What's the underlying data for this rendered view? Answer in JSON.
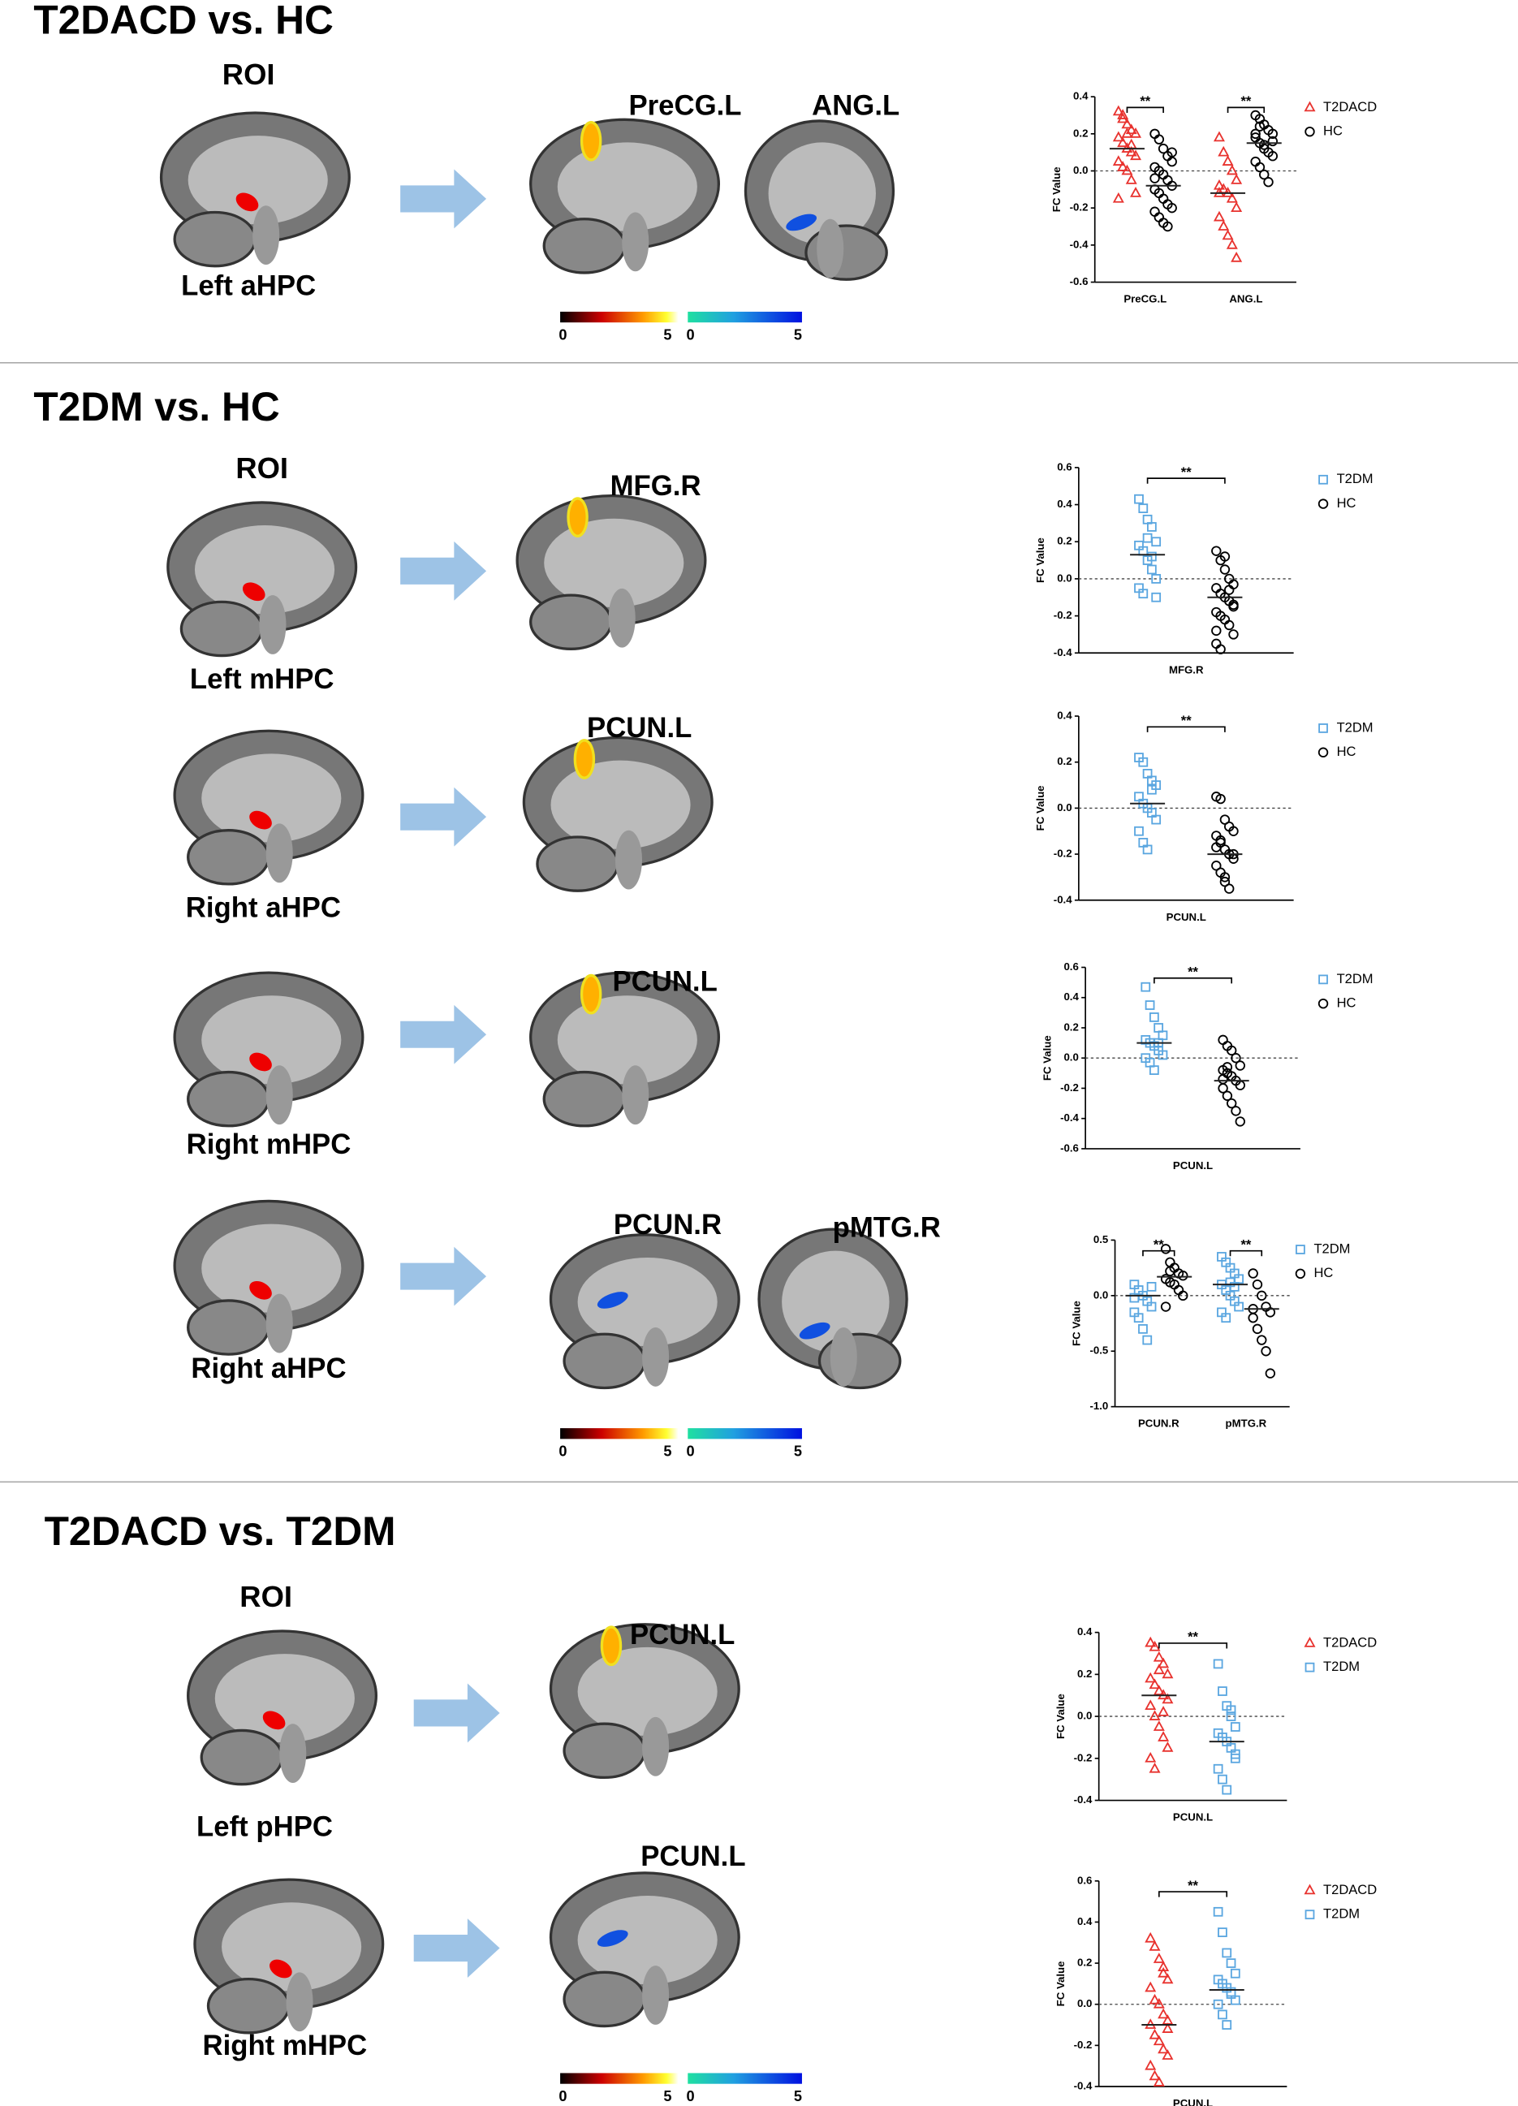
{
  "sections": [
    {
      "title": "T2DACD vs. HC",
      "rows": [
        {
          "roi_heading": "ROI",
          "roi": "Left aHPC",
          "regions": [
            "PreCG.L",
            "ANG.L"
          ]
        }
      ],
      "colorbar_labels": [
        0,
        5,
        0,
        5
      ]
    },
    {
      "title": "T2DM vs. HC",
      "rows": [
        {
          "roi_heading": "ROI",
          "roi": "Left mHPC",
          "regions": [
            "MFG.R"
          ]
        },
        {
          "roi": "Right aHPC",
          "regions": [
            "PCUN.L"
          ]
        },
        {
          "roi": "Right mHPC",
          "regions": [
            "PCUN.L"
          ]
        },
        {
          "roi": "Right aHPC",
          "regions": [
            "PCUN.R",
            "pMTG.R"
          ]
        }
      ],
      "colorbar_labels": [
        0,
        5,
        0,
        5
      ]
    },
    {
      "title": "T2DACD vs. T2DM",
      "rows": [
        {
          "roi_heading": "ROI",
          "roi": "Left pHPC",
          "regions": [
            "PCUN.L"
          ]
        },
        {
          "roi": "Right mHPC",
          "regions": [
            "PCUN.L"
          ]
        }
      ],
      "colorbar_labels": [
        0,
        5,
        0,
        5
      ]
    }
  ],
  "chart_data": [
    {
      "type": "dot",
      "ylabel": "FC Value",
      "categories": [
        "PreCG.L",
        "ANG.L"
      ],
      "ylim": [
        -0.6,
        0.4
      ],
      "yticks": [
        -0.6,
        -0.4,
        -0.2,
        {
          "value": 0,
          "label": "0.0"
        },
        0.2,
        0.4
      ],
      "zero_line": true,
      "significance": [
        "**",
        "**"
      ],
      "series": [
        {
          "name": "T2DACD",
          "color": "#e8322e",
          "marker": "triangle",
          "values": [
            [
              0.32,
              0.3,
              0.25,
              0.22,
              0.2,
              0.18,
              0.15,
              0.12,
              0.1,
              0.08,
              0.05,
              0.02,
              0,
              -0.05,
              -0.12,
              -0.15,
              0.28,
              0.2,
              0.14
            ],
            [
              0.18,
              0.1,
              0.05,
              0,
              -0.05,
              -0.08,
              -0.1,
              -0.12,
              -0.15,
              -0.2,
              -0.25,
              -0.3,
              -0.35,
              -0.4,
              -0.47,
              -0.12
            ]
          ],
          "medians": [
            0.12,
            -0.12
          ]
        },
        {
          "name": "HC",
          "color": "#000000",
          "marker": "circle",
          "values": [
            [
              0.2,
              0.17,
              0.12,
              0.08,
              0.05,
              0.02,
              0,
              -0.02,
              -0.05,
              -0.08,
              -0.1,
              -0.12,
              -0.15,
              -0.18,
              -0.2,
              -0.22,
              -0.25,
              -0.28,
              -0.3,
              0.1,
              -0.04
            ],
            [
              0.3,
              0.28,
              0.25,
              0.22,
              0.2,
              0.18,
              0.15,
              0.12,
              0.1,
              0.08,
              0.05,
              0.02,
              -0.02,
              -0.06,
              0.16,
              0.2,
              0.24,
              0.14
            ]
          ],
          "medians": [
            -0.08,
            0.15
          ]
        }
      ]
    },
    {
      "type": "dot",
      "ylabel": "FC Value",
      "categories": [
        "MFG.R"
      ],
      "ylim": [
        -0.4,
        0.6
      ],
      "yticks": [
        -0.4,
        -0.2,
        {
          "value": 0,
          "label": "0.0"
        },
        0.2,
        0.4,
        0.6
      ],
      "zero_line": true,
      "significance": [
        "**"
      ],
      "series": [
        {
          "name": "T2DM",
          "color": "#5aa6e0",
          "marker": "square",
          "values": [
            [
              0.43,
              0.38,
              0.32,
              0.28,
              0.2,
              0.18,
              0.15,
              0.1,
              0.05,
              0,
              -0.05,
              -0.08,
              0.22,
              0.12,
              -0.1
            ]
          ],
          "medians": [
            0.13
          ]
        },
        {
          "name": "HC",
          "color": "#000000",
          "marker": "circle",
          "values": [
            [
              0.15,
              0.1,
              0.05,
              0,
              -0.03,
              -0.05,
              -0.08,
              -0.1,
              -0.12,
              -0.15,
              -0.18,
              -0.2,
              -0.22,
              -0.25,
              -0.3,
              -0.35,
              -0.38,
              0.12,
              -0.06,
              -0.14,
              -0.28
            ]
          ],
          "medians": [
            -0.1
          ]
        }
      ]
    },
    {
      "type": "dot",
      "ylabel": "FC Value",
      "categories": [
        "PCUN.L"
      ],
      "ylim": [
        -0.4,
        0.4
      ],
      "yticks": [
        -0.4,
        -0.2,
        {
          "value": 0,
          "label": "0.0"
        },
        0.2,
        0.4
      ],
      "zero_line": true,
      "significance": [
        "**"
      ],
      "series": [
        {
          "name": "T2DM",
          "color": "#5aa6e0",
          "marker": "square",
          "values": [
            [
              0.22,
              0.2,
              0.15,
              0.12,
              0.1,
              0.05,
              0.02,
              0,
              -0.02,
              -0.05,
              -0.1,
              -0.15,
              -0.18,
              0.08
            ]
          ],
          "medians": [
            0.02
          ]
        },
        {
          "name": "HC",
          "color": "#000000",
          "marker": "circle",
          "values": [
            [
              0.05,
              0.04,
              -0.05,
              -0.08,
              -0.1,
              -0.12,
              -0.15,
              -0.18,
              -0.2,
              -0.22,
              -0.25,
              -0.28,
              -0.3,
              -0.35,
              -0.2,
              -0.17,
              -0.14,
              -0.32
            ]
          ],
          "medians": [
            -0.2
          ]
        }
      ]
    },
    {
      "type": "dot",
      "ylabel": "FC Value",
      "categories": [
        "PCUN.L"
      ],
      "ylim": [
        -0.6,
        0.6
      ],
      "yticks": [
        -0.6,
        -0.4,
        -0.2,
        {
          "value": 0,
          "label": "0.0"
        },
        0.2,
        0.4,
        0.6
      ],
      "zero_line": true,
      "significance": [
        "**"
      ],
      "series": [
        {
          "name": "T2DM",
          "color": "#5aa6e0",
          "marker": "square",
          "values": [
            [
              0.47,
              0.35,
              0.27,
              0.2,
              0.15,
              0.12,
              0.1,
              0.08,
              0.05,
              0.02,
              0,
              -0.03,
              -0.08,
              0.1
            ]
          ],
          "medians": [
            0.1
          ]
        },
        {
          "name": "HC",
          "color": "#000000",
          "marker": "circle",
          "values": [
            [
              0.12,
              0.08,
              0.05,
              0,
              -0.05,
              -0.08,
              -0.1,
              -0.12,
              -0.15,
              -0.18,
              -0.2,
              -0.25,
              -0.3,
              -0.35,
              -0.42,
              -0.14,
              -0.06
            ]
          ],
          "medians": [
            -0.15
          ]
        }
      ]
    },
    {
      "type": "dot",
      "ylabel": "FC Value",
      "categories": [
        "PCUN.R",
        "pMTG.R"
      ],
      "ylim": [
        -1.0,
        0.5
      ],
      "yticks": [
        {
          "value": -1,
          "label": "-1.0"
        },
        -0.5,
        {
          "value": 0,
          "label": "0.0"
        },
        0.5
      ],
      "zero_line": true,
      "significance": [
        "**",
        "**"
      ],
      "series": [
        {
          "name": "T2DM",
          "color": "#5aa6e0",
          "marker": "square",
          "values": [
            [
              0.1,
              0.05,
              0,
              -0.05,
              -0.1,
              -0.15,
              -0.2,
              -0.3,
              -0.4,
              0.08,
              -0.02
            ],
            [
              0.35,
              0.3,
              0.25,
              0.2,
              0.15,
              0.1,
              0.05,
              0,
              -0.05,
              -0.1,
              -0.15,
              -0.2,
              0.12,
              0.08
            ]
          ],
          "medians": [
            0,
            0.1
          ]
        },
        {
          "name": "HC",
          "color": "#000000",
          "marker": "circle",
          "values": [
            [
              0.42,
              0.3,
              0.25,
              0.2,
              0.18,
              0.15,
              0.12,
              0.1,
              0.05,
              0,
              -0.1,
              0.22
            ],
            [
              0.2,
              0.1,
              0,
              -0.1,
              -0.15,
              -0.2,
              -0.3,
              -0.4,
              -0.5,
              -0.7,
              -0.12
            ]
          ],
          "medians": [
            0.17,
            -0.12
          ]
        }
      ]
    },
    {
      "type": "dot",
      "ylabel": "FC Value",
      "categories": [
        "PCUN.L"
      ],
      "ylim": [
        -0.4,
        0.4
      ],
      "yticks": [
        -0.4,
        -0.2,
        {
          "value": 0,
          "label": "0.0"
        },
        0.2,
        0.4
      ],
      "zero_line": true,
      "significance": [
        "**"
      ],
      "series": [
        {
          "name": "T2DACD",
          "color": "#e8322e",
          "marker": "triangle",
          "values": [
            [
              0.35,
              0.33,
              0.28,
              0.25,
              0.2,
              0.18,
              0.15,
              0.12,
              0.1,
              0.08,
              0.05,
              0,
              -0.05,
              -0.1,
              -0.15,
              -0.2,
              -0.25,
              0.22,
              0.02
            ]
          ],
          "medians": [
            0.1
          ]
        },
        {
          "name": "T2DM",
          "color": "#5aa6e0",
          "marker": "square",
          "values": [
            [
              0.25,
              0.12,
              0.05,
              0,
              -0.05,
              -0.08,
              -0.1,
              -0.12,
              -0.15,
              -0.2,
              -0.25,
              -0.3,
              -0.35,
              0.03,
              -0.18
            ]
          ],
          "medians": [
            -0.12
          ]
        }
      ]
    },
    {
      "type": "dot",
      "ylabel": "FC Value",
      "categories": [
        "PCUN.L"
      ],
      "ylim": [
        -0.4,
        0.6
      ],
      "yticks": [
        -0.4,
        -0.2,
        {
          "value": 0,
          "label": "0.0"
        },
        0.2,
        0.4,
        0.6
      ],
      "zero_line": true,
      "significance": [
        "**"
      ],
      "series": [
        {
          "name": "T2DACD",
          "color": "#e8322e",
          "marker": "triangle",
          "values": [
            [
              0.32,
              0.28,
              0.22,
              0.18,
              0.12,
              0.08,
              0.02,
              0,
              -0.05,
              -0.08,
              -0.1,
              -0.15,
              -0.18,
              -0.22,
              -0.25,
              -0.3,
              -0.35,
              -0.38,
              0.15,
              -0.12
            ]
          ],
          "medians": [
            -0.1
          ]
        },
        {
          "name": "T2DM",
          "color": "#5aa6e0",
          "marker": "square",
          "values": [
            [
              0.45,
              0.35,
              0.25,
              0.2,
              0.15,
              0.12,
              0.1,
              0.08,
              0.05,
              0.02,
              0,
              -0.05,
              -0.1,
              0.06
            ]
          ],
          "medians": [
            0.07
          ]
        }
      ]
    }
  ]
}
